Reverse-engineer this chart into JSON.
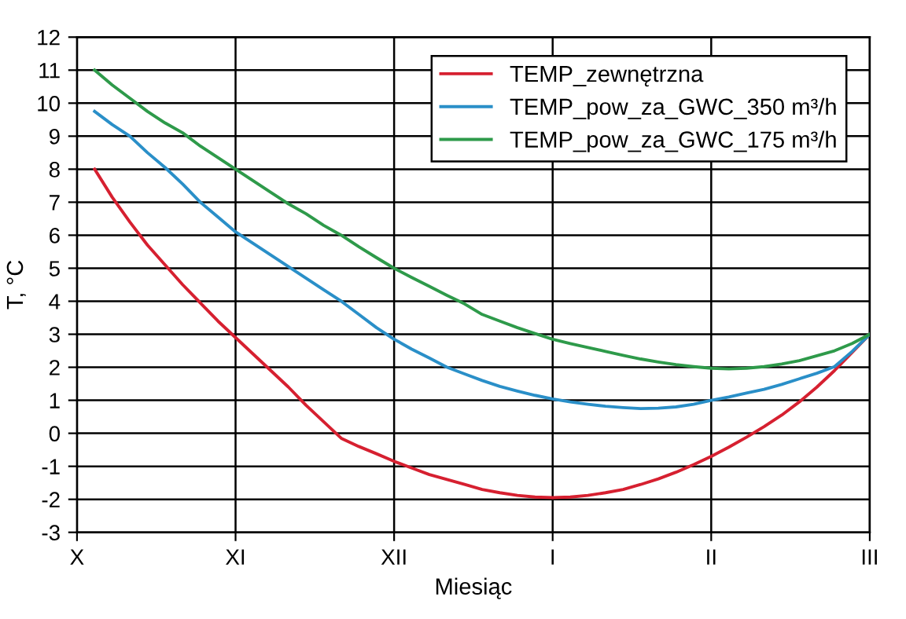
{
  "chart_data": {
    "type": "line",
    "xlabel": "Miesiąc",
    "ylabel": "T, °C",
    "categories": [
      "X",
      null,
      null,
      null,
      null,
      null,
      null,
      null,
      null,
      "XI",
      null,
      null,
      null,
      null,
      null,
      null,
      null,
      null,
      "XII",
      null,
      null,
      null,
      null,
      null,
      null,
      null,
      null,
      "I",
      null,
      null,
      null,
      null,
      null,
      null,
      null,
      null,
      "II",
      null,
      null,
      null,
      null,
      null,
      null,
      null,
      null,
      "III"
    ],
    "ylim": [
      -3,
      12
    ],
    "yticks": [
      -3,
      -2,
      -1,
      0,
      1,
      2,
      3,
      4,
      5,
      6,
      7,
      8,
      9,
      10,
      11,
      12
    ],
    "grid": true,
    "legend": "top right",
    "line_style": "solid",
    "marker": "none",
    "series": [
      {
        "name": "TEMP_zewnętrzna",
        "color": "#d62030",
        "values": [
          null,
          8,
          7.15,
          6.4,
          5.7,
          5.1,
          4.5,
          3.95,
          3.4,
          2.9,
          2.4,
          1.9,
          1.4,
          0.85,
          0.35,
          -0.15,
          -0.4,
          -0.62,
          -0.85,
          -1.05,
          -1.25,
          -1.4,
          -1.55,
          -1.7,
          -1.8,
          -1.88,
          -1.93,
          -1.95,
          -1.93,
          -1.88,
          -1.8,
          -1.7,
          -1.55,
          -1.38,
          -1.18,
          -0.95,
          -0.7,
          -0.42,
          -0.12,
          0.2,
          0.55,
          0.95,
          1.4,
          1.9,
          2.45,
          3
        ]
      },
      {
        "name": "TEMP_pow_za_GWC_350 m³/h",
        "color": "#2a8fc8",
        "values": [
          null,
          9.75,
          9.35,
          9,
          8.5,
          8.05,
          7.55,
          7,
          6.55,
          6.1,
          5.75,
          5.4,
          5.05,
          4.7,
          4.35,
          4,
          3.6,
          3.2,
          2.85,
          2.55,
          2.28,
          2,
          1.8,
          1.6,
          1.42,
          1.28,
          1.15,
          1.04,
          0.95,
          0.88,
          0.82,
          0.78,
          0.75,
          0.76,
          0.8,
          0.88,
          1,
          1.1,
          1.22,
          1.33,
          1.48,
          1.65,
          1.82,
          2.02,
          2.48,
          3
        ]
      },
      {
        "name": "TEMP_pow_za_GWC_175 m³/h",
        "color": "#2e9a4a",
        "values": [
          null,
          11,
          10.55,
          10.15,
          9.75,
          9.4,
          9.1,
          8.7,
          8.35,
          8,
          7.65,
          7.3,
          6.95,
          6.65,
          6.3,
          6,
          5.65,
          5.32,
          5,
          4.72,
          4.45,
          4.18,
          3.92,
          3.6,
          3.4,
          3.2,
          3.02,
          2.85,
          2.72,
          2.6,
          2.48,
          2.36,
          2.25,
          2.16,
          2.08,
          2.02,
          1.97,
          1.95,
          1.97,
          2.02,
          2.1,
          2.2,
          2.35,
          2.5,
          2.72,
          3
        ]
      }
    ]
  }
}
